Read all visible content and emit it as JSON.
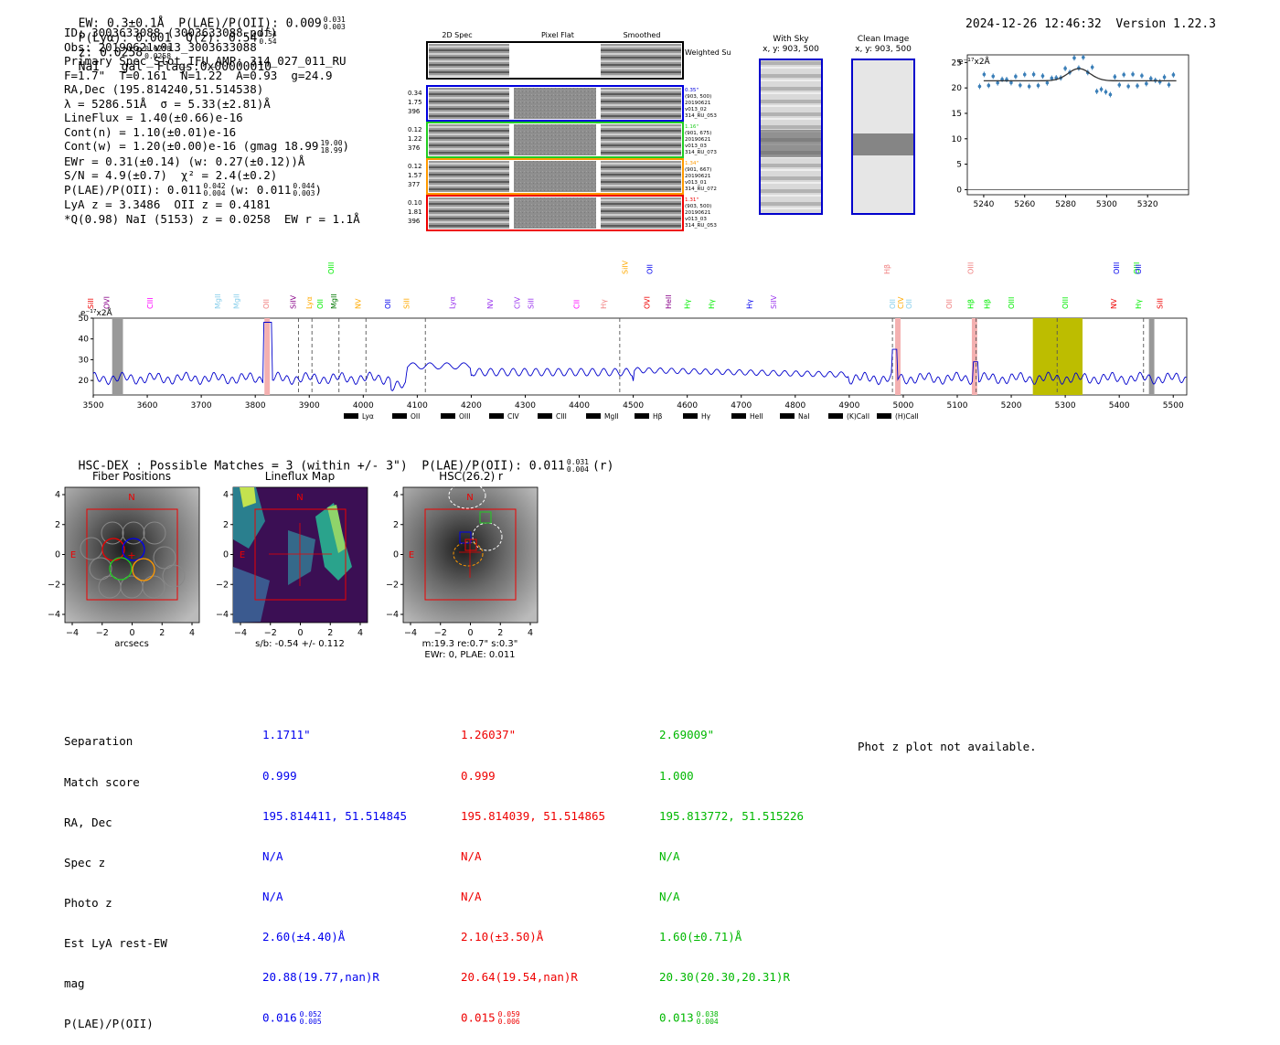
{
  "header": {
    "left": "EW: 0.3±0.1Å  P(LAE)/P(OII): 0.009",
    "left_hi": "0.031",
    "left_lo": "0.003",
    "plya": "P(Lyα): 0.001",
    "qz": "Q(z): 0.54",
    "qz_hi": "0.54",
    "qz_lo": "0.54",
    "z": "z: 0.0258",
    "z_hi": "0.0258",
    "z_lo": "0.0258",
    "tail": "NaI   gal  Flags:0x00000010",
    "datetime": "2024-12-26 12:46:32",
    "version": "Version 1.22.3"
  },
  "info": {
    "l1": "ID: 3003633088 (3003633088.pdf)",
    "l2": "Obs: 20190621v013_3003633088",
    "l3": "Primary Spec_Slot_IFU_AMP: 314_027_011_RU",
    "l4": "F=1.7\"  T=0.161  N=1.22  A=0.93  g=24.9",
    "l5": "RA,Dec (195.814240,51.514538)",
    "l6": "λ = 5286.51Å  σ = 5.33(±2.81)Å",
    "l7": "LineFlux = 1.40(±0.66)e-16",
    "l8": "Cont(n) = 1.10(±0.01)e-16",
    "l9": "Cont(w) = 1.20(±0.00)e-16 (gmag 18.99",
    "l9_hi": "19.00",
    "l9_lo": "18.99",
    "l10": "EWr = 0.31(±0.14) (w: 0.27(±0.12))Å",
    "l11": "S/N = 4.9(±0.7)  χ² = 2.4(±0.2)",
    "l12": "P(LAE)/P(OII): 0.011",
    "l12_hi": "0.042",
    "l12_lo": "0.004",
    "l12b": "(w: 0.011",
    "l12b_hi": "0.044",
    "l12b_lo": "0.003",
    "l13": "LyA z = 3.3486  OII z = 0.4181",
    "l14": "*Q(0.98) NaI (5153) z = 0.0258  EW r = 1.1Å"
  },
  "cutouts": {
    "headers": [
      "2D Spec",
      "Pixel Flat",
      "Smoothed"
    ],
    "weighted": "Weighted Sum",
    "rows": [
      {
        "nums": [
          "0.34",
          "1.75",
          "396"
        ],
        "meta": [
          "0.35\"",
          "(903, 500)",
          "20190621",
          "v013_02",
          "314_RU_053"
        ],
        "color": "#0000dd"
      },
      {
        "nums": [
          "0.12",
          "1.22",
          "376"
        ],
        "meta": [
          "1.16\"",
          "(901, 675)",
          "20190621",
          "v013_03",
          "314_RU_073"
        ],
        "color": "#22cc22"
      },
      {
        "nums": [
          "0.12",
          "1.57",
          "377"
        ],
        "meta": [
          "1.34\"",
          "(901, 667)",
          "20190621",
          "v013_01",
          "314_RU_072"
        ],
        "color": "#ff9900"
      },
      {
        "nums": [
          "0.10",
          "1.81",
          "396"
        ],
        "meta": [
          "1.31\"",
          "(903, 500)",
          "20190621",
          "v013_03",
          "314_RU_053"
        ],
        "color": "#ee0000"
      }
    ]
  },
  "skyimg": {
    "with_title": "With Sky",
    "with_sub": "x, y: 903, 500",
    "clean_title": "Clean Image",
    "clean_sub": "x, y: 903, 500"
  },
  "zoom": {
    "unit": "e⁻¹⁷x2Å",
    "xticks": [
      "5240",
      "5260",
      "5280",
      "5300",
      "5320"
    ],
    "yticks": [
      "0",
      "5",
      "10",
      "15",
      "20",
      "25"
    ]
  },
  "spectrum": {
    "unit": "e⁻¹⁷x2Å",
    "xticks": [
      "3500",
      "3600",
      "3700",
      "3800",
      "3900",
      "4000",
      "4100",
      "4200",
      "4300",
      "4400",
      "4500",
      "4600",
      "4700",
      "4800",
      "4900",
      "5000",
      "5100",
      "5200",
      "5300",
      "5400",
      "5500"
    ],
    "yticks": [
      "20",
      "30",
      "40",
      "50"
    ],
    "legend": [
      {
        "label": "Lyα",
        "color": "#ee0000"
      },
      {
        "label": "OII",
        "color": "#007700"
      },
      {
        "label": "OIII",
        "color": "#00ee00"
      },
      {
        "label": "CIV",
        "color": "#9933ee"
      },
      {
        "label": "CIII",
        "color": "#880088"
      },
      {
        "label": "MgII",
        "color": "#ff00ff"
      },
      {
        "label": "Hβ",
        "color": "#0000ee"
      },
      {
        "label": "Hγ",
        "color": "#4466ee"
      },
      {
        "label": "HeII",
        "color": "#ffaa00"
      },
      {
        "label": "NaI",
        "color": "#f08080"
      },
      {
        "label": "(K)CaII",
        "color": "#87ceeb"
      },
      {
        "label": "(H)CaII",
        "color": "#87ceeb"
      }
    ],
    "lines": [
      {
        "t": "SiII",
        "w": 3500,
        "c": "#ee0000"
      },
      {
        "t": "OVI",
        "w": 3530,
        "c": "#880088"
      },
      {
        "t": "CIII",
        "w": 3610,
        "c": "#ff00ff"
      },
      {
        "t": "MgII",
        "w": 3735,
        "c": "#87ceeb"
      },
      {
        "t": "MgII",
        "w": 3770,
        "c": "#87ceeb"
      },
      {
        "t": "OII",
        "w": 3825,
        "c": "#f08080"
      },
      {
        "t": "SiIV",
        "w": 3875,
        "c": "#880088"
      },
      {
        "t": "Lyα",
        "w": 3905,
        "c": "#ffaa00"
      },
      {
        "t": "OII",
        "w": 3925,
        "c": "#00ee00"
      },
      {
        "t": "MgII",
        "w": 3950,
        "c": "#007700"
      },
      {
        "t": "NV",
        "w": 3995,
        "c": "#ffaa00"
      },
      {
        "t": "OII",
        "w": 4050,
        "c": "#0000ee"
      },
      {
        "t": "SiII",
        "w": 4085,
        "c": "#ffaa00"
      },
      {
        "t": "Lyα",
        "w": 4170,
        "c": "#9933ee"
      },
      {
        "t": "NV",
        "w": 4240,
        "c": "#9933ee"
      },
      {
        "t": "CIV",
        "w": 4290,
        "c": "#9933ee"
      },
      {
        "t": "SiII",
        "w": 4315,
        "c": "#9933ee"
      },
      {
        "t": "CII",
        "w": 4400,
        "c": "#ff00ff"
      },
      {
        "t": "Hγ",
        "w": 4450,
        "c": "#f08080"
      },
      {
        "t": "OVI",
        "w": 4530,
        "c": "#ee0000"
      },
      {
        "t": "HeII",
        "w": 4570,
        "c": "#880088"
      },
      {
        "t": "Hγ",
        "w": 4605,
        "c": "#00ee00"
      },
      {
        "t": "Hγ",
        "w": 4650,
        "c": "#00ee00"
      },
      {
        "t": "Hγ",
        "w": 4720,
        "c": "#0000ee"
      },
      {
        "t": "SiIV",
        "w": 4765,
        "c": "#9933ee"
      },
      {
        "t": "OII",
        "w": 4985,
        "c": "#87ceeb"
      },
      {
        "t": "CIV",
        "w": 5000,
        "c": "#ffaa00"
      },
      {
        "t": "OII",
        "w": 5015,
        "c": "#87ceeb"
      },
      {
        "t": "OII",
        "w": 5090,
        "c": "#f08080"
      },
      {
        "t": "Hβ",
        "w": 5130,
        "c": "#00ee00"
      },
      {
        "t": "Hβ",
        "w": 5160,
        "c": "#00ee00"
      },
      {
        "t": "OIII",
        "w": 5205,
        "c": "#00ee00"
      },
      {
        "t": "OIII",
        "w": 5305,
        "c": "#00ee00"
      },
      {
        "t": "NV",
        "w": 5395,
        "c": "#ee0000"
      },
      {
        "t": "Hγ",
        "w": 5440,
        "c": "#00ee00"
      },
      {
        "t": "SiII",
        "w": 5480,
        "c": "#ee0000"
      }
    ],
    "lines_top": [
      {
        "t": "OIII",
        "w": 3945,
        "c": "#00ee00"
      },
      {
        "t": "SiIV",
        "w": 4490,
        "c": "#ffaa00"
      },
      {
        "t": "OII",
        "w": 4535,
        "c": "#0000ee"
      },
      {
        "t": "Hβ",
        "w": 4975,
        "c": "#f08080"
      },
      {
        "t": "OIII",
        "w": 5130,
        "c": "#f08080"
      },
      {
        "t": "OIII",
        "w": 5400,
        "c": "#0000ee"
      },
      {
        "t": "OIII",
        "w": 5437,
        "c": "#00ee00"
      },
      {
        "t": "OII",
        "w": 5440,
        "c": "#0000ee"
      }
    ]
  },
  "hsc": {
    "header": "HSC-DEX : Possible Matches = 3 (within +/- 3\")  P(LAE)/P(OII): 0.011",
    "header_hi": "0.031",
    "header_lo": "0.004",
    "header_tail": "(r)",
    "p1_title": "Fiber Positions",
    "p1_xlabel": "arcsecs",
    "p2_title": "Lineflux Map",
    "p2_xlabel": "s/b: -0.54 +/- 0.112",
    "p3_title": "HSC(26.2) r",
    "p3_xlabel1": "m:19.3  re:0.7\"  s:0.3\"",
    "p3_xlabel2": "EWr: 0, PLAE: 0.011",
    "ticks": [
      "−4",
      "−2",
      "0",
      "2",
      "4"
    ],
    "N": "N",
    "E": "E"
  },
  "table": {
    "labels": [
      "Separation",
      "Match score",
      "RA, Dec",
      "Spec z",
      "Photo z",
      "Est LyA rest-EW",
      "mag",
      "P(LAE)/P(OII)"
    ],
    "cols": [
      {
        "color": "#0000ee",
        "vals": [
          "1.1711\"",
          "0.999",
          "195.814411, 51.514845",
          "N/A",
          "N/A",
          "2.60(±4.40)Å",
          "20.88(19.77,nan)R",
          "0.016"
        ],
        "p_hi": "0.052",
        "p_lo": "0.005"
      },
      {
        "color": "#ee0000",
        "vals": [
          "1.26037\"",
          "0.999",
          "195.814039, 51.514865",
          "N/A",
          "N/A",
          "2.10(±3.50)Å",
          "20.64(19.54,nan)R",
          "0.015"
        ],
        "p_hi": "0.059",
        "p_lo": "0.006"
      },
      {
        "color": "#00b800",
        "vals": [
          "2.69009\"",
          "1.000",
          "195.813772, 51.515226",
          "N/A",
          "N/A",
          "1.60(±0.71)Å",
          "20.30(20.30,20.31)R",
          "0.013"
        ],
        "p_hi": "0.038",
        "p_lo": "0.004"
      }
    ],
    "photz": "Phot z plot not available."
  }
}
